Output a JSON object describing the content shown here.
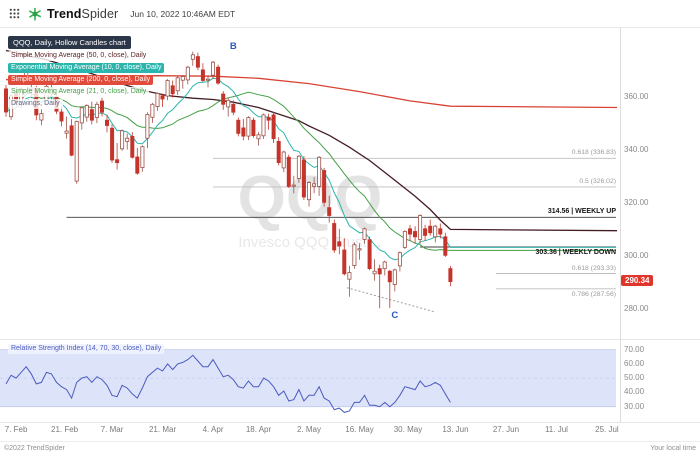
{
  "header": {
    "brand_trend": "Trend",
    "brand_spider": "Spider",
    "timestamp": "Jun 10, 2022 10:46AM EDT"
  },
  "legend": {
    "chart_label": "QQQ, Daily, Hollow Candles chart",
    "items": [
      {
        "label": "Simple Moving Average (50, 0, close), Daily",
        "color": "#5c2222",
        "style": "text"
      },
      {
        "label": "Exponential Moving Average (10, 0, close), Daily",
        "color": "#2cb5ac",
        "style": "badge"
      },
      {
        "label": "Simple Moving Average (200, 0, close), Daily",
        "color": "#e04b3b",
        "style": "badge"
      },
      {
        "label": "Simple Moving Average (21, 0, close), Daily",
        "color": "#43a047",
        "style": "text"
      },
      {
        "label": "Drawings, Daily",
        "color": "#5a6b8c",
        "style": "text"
      }
    ],
    "rsi_label": "Relative Strength Index (14, 70, 30, close), Daily"
  },
  "watermark": {
    "symbol": "QQQ",
    "name": "Invesco QQQ Trust…"
  },
  "footer": {
    "copyright": "©2022 TrendSpider",
    "local_time": "Your local time"
  },
  "chart_data": [
    {
      "type": "candlestick",
      "symbol": "QQQ",
      "timeframe": "Daily",
      "style": "Hollow Candles",
      "title": "QQQ, Daily, Hollow Candles chart",
      "ylim": [
        269,
        386
      ],
      "candle_down_color": "#c5342b",
      "candle_up_stroke": "#9b5148",
      "current_price": 290.34,
      "current_price_label": "290.34",
      "current_price_color": "#e0352b",
      "y_ticks": [
        {
          "v": 360,
          "label": "360.00"
        },
        {
          "v": 340,
          "label": "340.00"
        },
        {
          "v": 320,
          "label": "320.00"
        },
        {
          "v": 300,
          "label": "300.00"
        },
        {
          "v": 280,
          "label": "280.00"
        }
      ],
      "x_ticks": [
        {
          "slot": 2,
          "label": "7. Feb"
        },
        {
          "slot": 11.6,
          "label": "21. Feb"
        },
        {
          "slot": 21,
          "label": "7. Mar"
        },
        {
          "slot": 31,
          "label": "21. Mar"
        },
        {
          "slot": 41,
          "label": "4. Apr"
        },
        {
          "slot": 50,
          "label": "18. Apr"
        },
        {
          "slot": 60,
          "label": "2. May"
        },
        {
          "slot": 70,
          "label": "16. May"
        },
        {
          "slot": 79.6,
          "label": "30. May"
        },
        {
          "slot": 89,
          "label": "13. Jun"
        },
        {
          "slot": 99,
          "label": "27. Jun"
        },
        {
          "slot": 109,
          "label": "11. Jul"
        },
        {
          "slot": 119,
          "label": "25. Jul"
        }
      ],
      "levels": [
        {
          "price": 336.83,
          "label": "0.618 (336.83)",
          "start_slot": 41,
          "emphasis": false,
          "label_below": false
        },
        {
          "price": 326.02,
          "label": "0.5 (326.02)",
          "start_slot": 41,
          "emphasis": false,
          "label_below": false
        },
        {
          "price": 314.56,
          "label": "314.56 | WEEKLY UP",
          "start_slot": 12,
          "emphasis": true,
          "label_below": false
        },
        {
          "price": 303.36,
          "label": "303.36 | WEEKLY DOWN",
          "start_slot": 82,
          "emphasis": true,
          "label_below": true
        },
        {
          "price": 293.33,
          "label": "0.618 (293.33)",
          "start_slot": 97,
          "emphasis": false,
          "label_below": false
        },
        {
          "price": 287.56,
          "label": "0.786 (287.56)",
          "start_slot": 97,
          "emphasis": false,
          "label_below": true
        }
      ],
      "trendline": {
        "from": [
          67.5,
          288
        ],
        "to": [
          85,
          278.8
        ],
        "color": "#9e9e9e",
        "style": "dashed"
      },
      "annotations": [
        {
          "text": "B",
          "slot": 45,
          "price": 378,
          "color": "#2f55c4"
        },
        {
          "text": "C",
          "slot": 77,
          "price": 276.5,
          "color": "#2f55c4"
        }
      ],
      "overlays": [
        {
          "name": "SMA 200",
          "color": "#d94333",
          "width": 1.3,
          "points": [
            [
              0,
              366.5
            ],
            [
              15,
              367.5
            ],
            [
              30,
              368
            ],
            [
              41,
              367.8
            ],
            [
              50,
              367
            ],
            [
              60,
              365
            ],
            [
              70,
              362
            ],
            [
              80,
              358.5
            ],
            [
              88,
              356.5
            ],
            [
              121,
              356
            ]
          ]
        },
        {
          "name": "SMA 50",
          "color": "#451c24",
          "width": 1.3,
          "points": [
            [
              0,
              377.5
            ],
            [
              8,
              374
            ],
            [
              15,
              370
            ],
            [
              22,
              365.5
            ],
            [
              27,
              362.5
            ],
            [
              32,
              360.5
            ],
            [
              37,
              359.5
            ],
            [
              41,
              359
            ],
            [
              45,
              358
            ],
            [
              50,
              356
            ],
            [
              54,
              353.5
            ],
            [
              58,
              351
            ],
            [
              60,
              349
            ],
            [
              64,
              345.5
            ],
            [
              68,
              341
            ],
            [
              72,
              336
            ],
            [
              75,
              331.5
            ],
            [
              78,
              327
            ],
            [
              81,
              322.5
            ],
            [
              84,
              317.5
            ],
            [
              86,
              313.5
            ],
            [
              88,
              310
            ],
            [
              121,
              309.5
            ]
          ]
        },
        {
          "name": "SMA 21",
          "color": "#43a047",
          "width": 1,
          "compute": "sma",
          "period": 21
        },
        {
          "name": "EMA 10",
          "color": "#2cb5ac",
          "width": 1,
          "compute": "ema",
          "period": 10
        }
      ],
      "candles": [
        [
          363,
          364.5,
          352.5,
          354.3
        ],
        [
          352.5,
          361.1,
          351.3,
          360.4
        ],
        [
          361.4,
          362.6,
          356.6,
          358
        ],
        [
          357,
          363.6,
          355.6,
          363.1
        ],
        [
          365.3,
          369.6,
          364.7,
          369.2
        ],
        [
          362.3,
          368.3,
          359.5,
          363.3
        ],
        [
          363.2,
          364.2,
          351.2,
          353.2
        ],
        [
          351.3,
          355.3,
          349.3,
          353.7
        ],
        [
          357.4,
          364.7,
          356.7,
          364
        ],
        [
          361.2,
          364.6,
          357.7,
          363.4
        ],
        [
          360,
          361.1,
          353.5,
          354.6
        ],
        [
          354.3,
          356.6,
          348.9,
          350.9
        ],
        [
          346.3,
          352.6,
          344.2,
          347.1
        ],
        [
          349.1,
          351.6,
          337.6,
          338
        ],
        [
          328.2,
          351.1,
          327.2,
          350.7
        ],
        [
          350.2,
          356.1,
          347.6,
          355.9
        ],
        [
          352.4,
          357.2,
          350.6,
          356.8
        ],
        [
          355.2,
          358.2,
          349.6,
          351.2
        ],
        [
          352.2,
          358.2,
          350.1,
          357.2
        ],
        [
          358.4,
          359.6,
          352.6,
          354.2
        ],
        [
          351.2,
          353.3,
          346.6,
          349.2
        ],
        [
          348.2,
          349.7,
          335.1,
          336.2
        ],
        [
          336.3,
          342.6,
          332.6,
          335.2
        ],
        [
          340.4,
          347.7,
          339.7,
          347.2
        ],
        [
          343.2,
          346.2,
          340.1,
          344.4
        ],
        [
          345.1,
          346.7,
          336.7,
          337.2
        ],
        [
          337.3,
          340.7,
          330.6,
          331.2
        ],
        [
          333.3,
          341.7,
          331.7,
          341.2
        ],
        [
          344.4,
          354.2,
          340.7,
          353.4
        ],
        [
          352.3,
          357.7,
          350.2,
          357.2
        ],
        [
          356.3,
          361.7,
          354.7,
          361.3
        ],
        [
          360.4,
          361.2,
          356.2,
          359.2
        ],
        [
          360.3,
          366.7,
          358.7,
          366.2
        ],
        [
          364.2,
          366.2,
          359.7,
          361.2
        ],
        [
          362.3,
          367.7,
          360.7,
          367.2
        ],
        [
          366.3,
          368.2,
          363.1,
          367.7
        ],
        [
          366.4,
          371.7,
          364.7,
          371.2
        ],
        [
          374.2,
          377.1,
          371.7,
          375.9
        ],
        [
          375.2,
          376.7,
          370.1,
          371.2
        ],
        [
          370.2,
          372.7,
          365.6,
          366.2
        ],
        [
          366.3,
          368.2,
          363.6,
          366.7
        ],
        [
          368.2,
          373.6,
          366.7,
          373.1
        ],
        [
          371.2,
          372.2,
          364.6,
          365.2
        ],
        [
          361.1,
          362.2,
          355.1,
          357.2
        ],
        [
          356.2,
          359.7,
          352.6,
          358.7
        ],
        [
          357.2,
          358.7,
          353.1,
          354.2
        ],
        [
          351.2,
          352.2,
          345.1,
          346.2
        ],
        [
          348.3,
          351.7,
          343.6,
          345.2
        ],
        [
          345.2,
          352.7,
          343.7,
          352.2
        ],
        [
          351.2,
          352.2,
          344.6,
          345.4
        ],
        [
          344.2,
          346.7,
          341.6,
          345.7
        ],
        [
          345.3,
          353.7,
          344.1,
          353.2
        ],
        [
          352.3,
          353.7,
          347.6,
          351.2
        ],
        [
          353.2,
          354.2,
          342.6,
          344.2
        ],
        [
          343.2,
          344.7,
          334.1,
          335.2
        ],
        [
          333.2,
          339.7,
          331.6,
          339.2
        ],
        [
          337.2,
          338.2,
          325.6,
          326.2
        ],
        [
          326.3,
          330.2,
          323.6,
          326.7
        ],
        [
          329.2,
          338.1,
          327.6,
          337.6
        ],
        [
          336.2,
          337.7,
          321.1,
          322.2
        ],
        [
          321.2,
          328.2,
          318.6,
          327.7
        ],
        [
          326.3,
          329.7,
          323.6,
          327.2
        ],
        [
          326.2,
          337.7,
          322.6,
          337.2
        ],
        [
          332.2,
          333.2,
          318.6,
          320.2
        ],
        [
          318.2,
          322.7,
          312.6,
          315.2
        ],
        [
          312.2,
          313.7,
          301.1,
          302.2
        ],
        [
          305.3,
          310.2,
          300.6,
          303.7
        ],
        [
          302.2,
          306.7,
          292.6,
          293.2
        ],
        [
          291.2,
          296.2,
          284.6,
          293.7
        ],
        [
          296.3,
          305.1,
          295.1,
          304.2
        ],
        [
          302.2,
          304.7,
          298.6,
          302.7
        ],
        [
          306.2,
          310.7,
          304.6,
          310.2
        ],
        [
          306.1,
          307.2,
          294.6,
          295.2
        ],
        [
          293.2,
          298.7,
          290.6,
          294.2
        ],
        [
          295.2,
          296.7,
          280.2,
          293.2
        ],
        [
          295.2,
          298.2,
          292.6,
          297.7
        ],
        [
          294.2,
          294.7,
          280.3,
          290.2
        ],
        [
          289.2,
          295.2,
          286.6,
          294.7
        ],
        [
          296.2,
          301.7,
          294.1,
          301.2
        ],
        [
          303.2,
          309.7,
          302.6,
          309.2
        ],
        [
          310.2,
          311.7,
          305.6,
          308.2
        ],
        [
          309.2,
          311.2,
          304.6,
          307.2
        ],
        [
          306.2,
          315.7,
          304.6,
          315.2
        ],
        [
          310.2,
          311.7,
          305.6,
          307.7
        ],
        [
          311.2,
          313.7,
          307.6,
          308.7
        ],
        [
          307.2,
          311.7,
          305.1,
          311.2
        ],
        [
          310.2,
          312.2,
          306.6,
          308.2
        ],
        [
          307.2,
          308.7,
          299.6,
          300.2
        ],
        [
          295.2,
          296.2,
          288.6,
          290.3
        ]
      ]
    },
    {
      "type": "line",
      "name": "Relative Strength Index (14, 70, 30, close)",
      "color": "#4a5bbf",
      "ylim": [
        20,
        76
      ],
      "band": [
        30,
        70
      ],
      "band_fill": "#dde3f8",
      "band_edge": "#c2cbee",
      "y_ticks": [
        {
          "v": 70,
          "label": "70.00"
        },
        {
          "v": 60,
          "label": "60.00"
        },
        {
          "v": 50,
          "label": "50.00"
        },
        {
          "v": 40,
          "label": "40.00"
        },
        {
          "v": 30,
          "label": "30.00"
        }
      ],
      "values": [
        46,
        52,
        50,
        54,
        58,
        53,
        46,
        47,
        54,
        53,
        47,
        44,
        42,
        36,
        47,
        50,
        51,
        47,
        51,
        49,
        45,
        38,
        37,
        45,
        43,
        39,
        36,
        43,
        51,
        54,
        57,
        55,
        60,
        56,
        60,
        61,
        63,
        66,
        62,
        58,
        58,
        63,
        57,
        51,
        52,
        49,
        44,
        43,
        48,
        44,
        44,
        50,
        48,
        44,
        38,
        41,
        34,
        35,
        42,
        34,
        38,
        38,
        44,
        36,
        34,
        28,
        29,
        26,
        27,
        33,
        33,
        38,
        31,
        31,
        30,
        33,
        30,
        33,
        38,
        44,
        43,
        42,
        48,
        44,
        45,
        47,
        45,
        39,
        33
      ]
    }
  ]
}
